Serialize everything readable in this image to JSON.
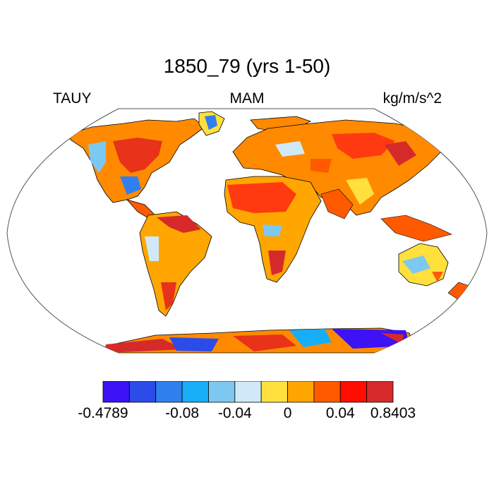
{
  "title": "1850_79 (yrs 1-50)",
  "left_label": "TAUY",
  "center_label": "MAM",
  "units": "kg/m/s^2",
  "colorbar": {
    "colors": [
      "#3d12f4",
      "#2b4ce8",
      "#2f80ee",
      "#17aef7",
      "#7dc8f0",
      "#cfe9f8",
      "#ffe03c",
      "#ffa600",
      "#ff5a00",
      "#ff0d00",
      "#d62a2a"
    ],
    "labels": [
      {
        "text": "-0.4789",
        "boundary": 0
      },
      {
        "text": "-0.08",
        "boundary": 3
      },
      {
        "text": "-0.04",
        "boundary": 5
      },
      {
        "text": "0",
        "boundary": 7
      },
      {
        "text": "0.04",
        "boundary": 9
      },
      {
        "text": "0.8403",
        "boundary": 11
      }
    ]
  },
  "map": {
    "projection": "Robinson",
    "ocean_color": "#ffffff",
    "land_fill": "shaded",
    "coastline_color": "#000000"
  }
}
